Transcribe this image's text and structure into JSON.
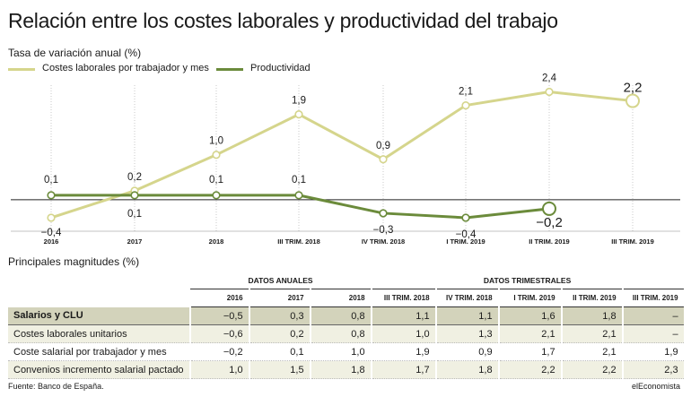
{
  "title": "Relación entre los costes laborales y productividad del trabajo",
  "subtitle": "Tasa de variación anual (%)",
  "colors": {
    "labor": "#d5d58c",
    "prod": "#6b8b3b",
    "highlight_row": "#d3d3bb",
    "alt_row": "#f0f0e2"
  },
  "chart_data": {
    "type": "line",
    "categories": [
      "2016",
      "2017",
      "2018",
      "III TRIM. 2018",
      "IV TRIM. 2018",
      "I TRIM. 2019",
      "II TRIM. 2019",
      "III TRIM. 2019"
    ],
    "series": [
      {
        "name": "Costes laborales por trabajador y mes",
        "values": [
          -0.4,
          0.2,
          1.0,
          1.9,
          0.9,
          2.1,
          2.4,
          2.2
        ],
        "labels": [
          "−0,4",
          "0,2",
          "1,0",
          "1,9",
          "0,9",
          "2,1",
          "2,4",
          "2,2"
        ]
      },
      {
        "name": "Productividad",
        "values": [
          0.1,
          0.1,
          0.1,
          0.1,
          -0.3,
          -0.4,
          -0.2,
          null
        ],
        "labels": [
          "0,1",
          "0,1",
          "0,1",
          "0,1",
          "−0,3",
          "−0,4",
          "−0,2",
          ""
        ]
      }
    ],
    "ylim": [
      -0.7,
      2.55
    ],
    "ylabel": "Tasa de variación anual (%)"
  },
  "table": {
    "section_title": "Principales magnitudes (%)",
    "group_headers": [
      "DATOS ANUALES",
      "DATOS TRIMESTRALES"
    ],
    "columns": [
      "2016",
      "2017",
      "2018",
      "III TRIM. 2018",
      "IV TRIM. 2018",
      "I TRIM. 2019",
      "II TRIM. 2019",
      "III TRIM. 2019"
    ],
    "rows": [
      {
        "label": "Salarios y CLU",
        "values": [
          "",
          "",
          "",
          "",
          "",
          "",
          "",
          ""
        ]
      },
      {
        "label": "Costes laborales unitarios",
        "values": [
          "−0,6",
          "0,2",
          "0,8",
          "1,0",
          "1,3",
          "2,1",
          "2,1",
          "–"
        ]
      },
      {
        "label": "Coste salarial por trabajador y mes",
        "values": [
          "−0,2",
          "0,1",
          "1,0",
          "1,9",
          "0,9",
          "1,7",
          "2,1",
          "1,9"
        ]
      },
      {
        "label": "Convenios incremento salarial pactado",
        "values": [
          "1,0",
          "1,5",
          "1,8",
          "1,7",
          "1,8",
          "2,2",
          "2,2",
          "2,3"
        ]
      }
    ],
    "header_row_values": [
      "−0,5",
      "0,3",
      "0,8",
      "1,1",
      "1,1",
      "1,6",
      "1,8",
      "–"
    ]
  },
  "footer": {
    "source": "Fuente: Banco de España.",
    "brand": "elEconomista"
  }
}
